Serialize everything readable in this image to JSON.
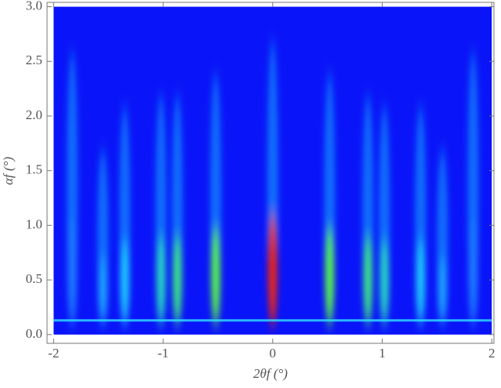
{
  "chart_data": {
    "type": "heatmap",
    "x_label": "2θf (°)",
    "y_label": "αf (°)",
    "xlim": [
      -2.06,
      2.02
    ],
    "ylim": [
      -0.08,
      3.04
    ],
    "xticks": [
      -2,
      -1,
      0,
      1,
      2
    ],
    "yticks": [
      {
        "value": 0,
        "label": "0.0"
      },
      {
        "value": 0.5,
        "label": "0.5"
      },
      {
        "value": 1,
        "label": "1.0"
      },
      {
        "value": 1.5,
        "label": "1.5"
      },
      {
        "value": 2,
        "label": "2.0"
      },
      {
        "value": 2.5,
        "label": "2.5"
      },
      {
        "value": 3,
        "label": "3.0"
      }
    ],
    "field": {
      "x": [
        -2,
        2
      ],
      "y": [
        0,
        3
      ],
      "color": "#0a14f8"
    },
    "horizon_line": 0.13,
    "rods": {
      "x": [
        -1.83,
        -1.55,
        -1.35,
        -1.02,
        -0.87,
        -0.52,
        0,
        0.52,
        0.87,
        1.02,
        1.35,
        1.55,
        1.83
      ],
      "top": [
        2.6,
        1.7,
        2.1,
        2.2,
        2.2,
        2.4,
        2.7,
        2.4,
        2.2,
        2.1,
        2.1,
        1.7,
        2.6
      ],
      "color": [
        "#1f7cff",
        "#1fa8ff",
        "#1fd0ff",
        "#28e0c0",
        "#40f080",
        "#60ff40",
        "#ff2000",
        "#60ff40",
        "#40f080",
        "#28e0c0",
        "#1fd0ff",
        "#1fa8ff",
        "#1f7cff"
      ]
    }
  }
}
